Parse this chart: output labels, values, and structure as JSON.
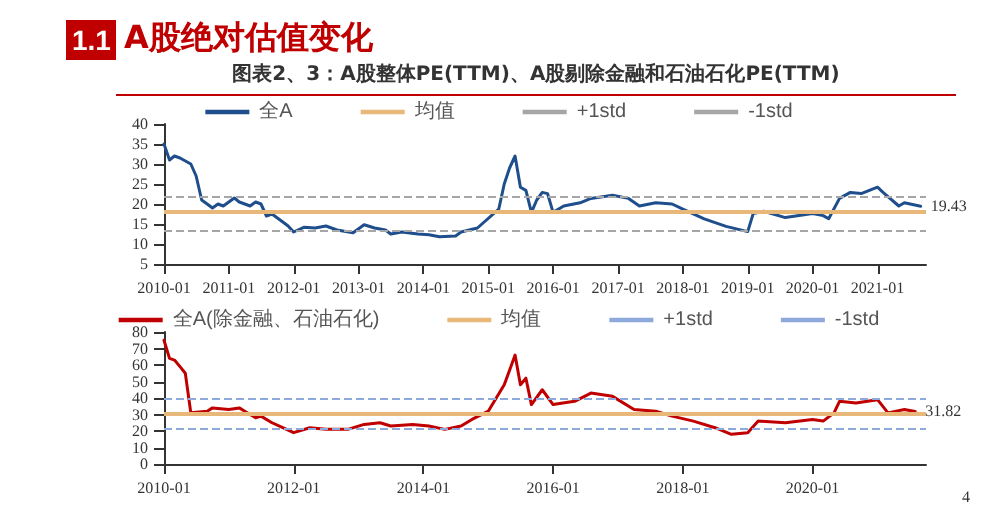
{
  "chart_data": [
    {
      "type": "line",
      "title": "A股绝对估值变化",
      "subtitle": "图表2、3：A股整体PE(TTM)、A股剔除金融和石油石化PE(TTM)",
      "annotations": [
        "1.1"
      ],
      "x": [
        "2010-01",
        "2010-02",
        "2010-03",
        "2010-04",
        "2010-06",
        "2010-07",
        "2010-08",
        "2010-09",
        "2010-10",
        "2010-11",
        "2010-12",
        "2011-02",
        "2011-03",
        "2011-04",
        "2011-05",
        "2011-06",
        "2011-07",
        "2011-08",
        "2011-09",
        "2011-11",
        "2011-12",
        "2012-01",
        "2012-03",
        "2012-05",
        "2012-07",
        "2012-09",
        "2012-12",
        "2013-02",
        "2013-04",
        "2013-06",
        "2013-07",
        "2013-09",
        "2013-12",
        "2014-02",
        "2014-04",
        "2014-07",
        "2014-08",
        "2014-11",
        "2015-03",
        "2015-04",
        "2015-05",
        "2015-06",
        "2015-07",
        "2015-08",
        "2015-09",
        "2015-10",
        "2015-11",
        "2015-12",
        "2016-01",
        "2016-03",
        "2016-06",
        "2016-08",
        "2016-12",
        "2017-03",
        "2017-05",
        "2017-08",
        "2017-11",
        "2018-01",
        "2018-05",
        "2018-09",
        "2019-01",
        "2019-02",
        "2019-04",
        "2019-08",
        "2020-01",
        "2020-03",
        "2020-04",
        "2020-06",
        "2020-08",
        "2020-10",
        "2021-01",
        "2021-02",
        "2021-05",
        "2021-06",
        "2021-09"
      ],
      "series": [
        {
          "name": "全A",
          "color": "#1f4e8c",
          "values": [
            35,
            31,
            32,
            31.5,
            30,
            27,
            21,
            20,
            19,
            20,
            19.5,
            21.5,
            20.5,
            20,
            19.5,
            20.5,
            20,
            17,
            17.5,
            15.5,
            14.5,
            13,
            14.2,
            14,
            14.5,
            13.5,
            12.8,
            14.8,
            14,
            13.5,
            12.5,
            13,
            12.5,
            12.3,
            11.8,
            12,
            13,
            14,
            18.7,
            25,
            29,
            32,
            24.2,
            23.4,
            17.9,
            21,
            22.9,
            22.6,
            17.9,
            19.5,
            20.3,
            21.4,
            22.2,
            21.4,
            19.5,
            20.3,
            20,
            18.7,
            16.3,
            14.4,
            13.1,
            17.6,
            18.2,
            16.6,
            17.6,
            17.1,
            16.3,
            21.4,
            22.9,
            22.6,
            24.2,
            22.9,
            19.5,
            20.3,
            19.43
          ],
          "value_labels": [
            null,
            null,
            null,
            null,
            null,
            null,
            null,
            null,
            null,
            null,
            null,
            null,
            null,
            null,
            null,
            null,
            null,
            null,
            null,
            null,
            null,
            null,
            null,
            null,
            null,
            null,
            null,
            null,
            null,
            null,
            null,
            null,
            null,
            null,
            null,
            null,
            null,
            null,
            null,
            null,
            null,
            null,
            null,
            null,
            null,
            null,
            null,
            null,
            null,
            null,
            null,
            null,
            null,
            null,
            null,
            null,
            null,
            null,
            null,
            null,
            null,
            null,
            null,
            null,
            null,
            null,
            null,
            null,
            null,
            null,
            null,
            null,
            null,
            null,
            "19.43"
          ]
        }
      ],
      "ref_lines": [
        {
          "axis": "y",
          "value": 17.9,
          "label": "均值",
          "color": "#e8b77a",
          "line_style": "solid"
        },
        {
          "axis": "y",
          "value": 22.1,
          "label": "+1std",
          "color": "#a6a6a6",
          "line_style": "dashed"
        },
        {
          "axis": "y",
          "value": 13.5,
          "label": "-1std",
          "color": "#a6a6a6",
          "line_style": "dashed"
        }
      ],
      "xlim": [
        "2010-01",
        "2021-10"
      ],
      "xticks": [
        "2010-01",
        "2011-01",
        "2012-01",
        "2013-01",
        "2014-01",
        "2015-01",
        "2016-01",
        "2017-01",
        "2018-01",
        "2019-01",
        "2020-01",
        "2021-01"
      ],
      "ylim": [
        5,
        40
      ],
      "yticks": [
        5,
        10,
        15,
        20,
        25,
        30,
        35,
        40
      ],
      "legend": "top",
      "marker": "none",
      "line_style": "solid",
      "grid": false
    },
    {
      "type": "line",
      "annotations": [
        "4"
      ],
      "x": [
        "2010-01",
        "2010-02",
        "2010-03",
        "2010-04",
        "2010-05",
        "2010-06",
        "2010-09",
        "2010-10",
        "2011-01",
        "2011-03",
        "2011-04",
        "2011-06",
        "2011-07",
        "2011-09",
        "2011-11",
        "2012-01",
        "2012-04",
        "2012-07",
        "2012-11",
        "2013-02",
        "2013-05",
        "2013-07",
        "2013-11",
        "2014-02",
        "2014-05",
        "2014-08",
        "2014-10",
        "2015-01",
        "2015-04",
        "2015-06",
        "2015-07",
        "2015-08",
        "2015-09",
        "2015-11",
        "2016-01",
        "2016-05",
        "2016-08",
        "2016-12",
        "2017-04",
        "2017-08",
        "2017-11",
        "2018-03",
        "2018-07",
        "2018-10",
        "2019-01",
        "2019-03",
        "2019-08",
        "2020-01",
        "2020-03",
        "2020-05",
        "2020-06",
        "2020-09",
        "2021-01",
        "2021-03",
        "2021-06",
        "2021-08"
      ],
      "series": [
        {
          "name": "全A(除金融、石油石化)",
          "color": "#c00000",
          "values": [
            75,
            64,
            63,
            59,
            55,
            31,
            32,
            34,
            33,
            34,
            32,
            28,
            29,
            25,
            22,
            19,
            22,
            21,
            21,
            24,
            25,
            23,
            24,
            23,
            21,
            23,
            27,
            32,
            48,
            66,
            48,
            52,
            36,
            45,
            36,
            38,
            43,
            41,
            33,
            32,
            29,
            26,
            22,
            18,
            19,
            26,
            25,
            27,
            26,
            31,
            38,
            37,
            39,
            31,
            33,
            31.82
          ],
          "value_labels": [
            null,
            null,
            null,
            null,
            null,
            null,
            null,
            null,
            null,
            null,
            null,
            null,
            null,
            null,
            null,
            null,
            null,
            null,
            null,
            null,
            null,
            null,
            null,
            null,
            null,
            null,
            null,
            null,
            null,
            null,
            null,
            null,
            null,
            null,
            null,
            null,
            null,
            null,
            null,
            null,
            null,
            null,
            null,
            null,
            null,
            null,
            null,
            null,
            null,
            null,
            null,
            null,
            null,
            null,
            null,
            "31.82"
          ]
        }
      ],
      "ref_lines": [
        {
          "axis": "y",
          "value": 31,
          "label": "均值",
          "color": "#e8b77a",
          "line_style": "solid"
        },
        {
          "axis": "y",
          "value": 40,
          "label": "+1std",
          "color": "#8ea9db",
          "line_style": "dashed"
        },
        {
          "axis": "y",
          "value": 21.5,
          "label": "-1std",
          "color": "#8ea9db",
          "line_style": "dashed"
        }
      ],
      "xlim": [
        "2010-01",
        "2021-10"
      ],
      "xticks": [
        "2010-01",
        "2012-01",
        "2014-01",
        "2016-01",
        "2018-01",
        "2020-01"
      ],
      "ylim": [
        0,
        80
      ],
      "yticks": [
        0,
        10,
        20,
        30,
        40,
        50,
        60,
        70,
        80
      ],
      "legend": "top",
      "marker": "none",
      "line_style": "solid",
      "grid": false
    }
  ]
}
